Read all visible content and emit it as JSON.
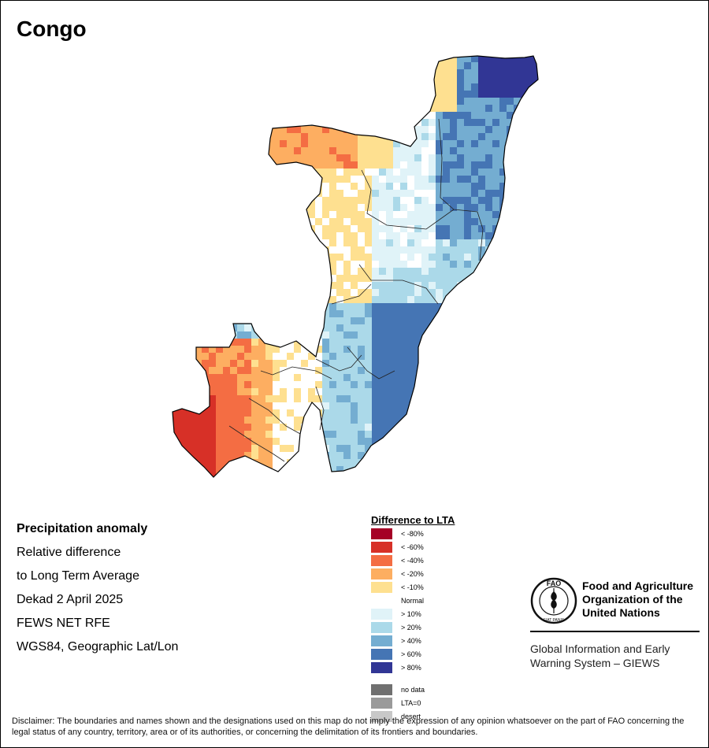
{
  "map": {
    "title": "Congo",
    "info": {
      "line1": "Precipitation anomaly",
      "line2": "Relative difference",
      "line3": "to Long Term Average",
      "line4": "Dekad 2 April 2025",
      "line5": "FEWS NET RFE",
      "line6": "WGS84, Geographic Lat/Lon"
    }
  },
  "legend": {
    "title": "Difference to LTA",
    "items": [
      {
        "label": "< -80%",
        "color": "#a50026"
      },
      {
        "label": "< -60%",
        "color": "#d73027"
      },
      {
        "label": "< -40%",
        "color": "#f46d43"
      },
      {
        "label": "< -20%",
        "color": "#fdae61"
      },
      {
        "label": "< -10%",
        "color": "#fee090"
      },
      {
        "label": "Normal",
        "color": "#ffffff"
      },
      {
        "label": "> 10%",
        "color": "#e0f3f8"
      },
      {
        "label": "> 20%",
        "color": "#abd9e9"
      },
      {
        "label": "> 40%",
        "color": "#74add1"
      },
      {
        "label": "> 60%",
        "color": "#4575b4"
      },
      {
        "label": "> 80%",
        "color": "#313695"
      }
    ],
    "extra": [
      {
        "label": "no data",
        "color": "#707070"
      },
      {
        "label": "LTA=0",
        "color": "#9a9a9a"
      },
      {
        "label": "desert",
        "color": "#c8c8c8"
      }
    ]
  },
  "logo": {
    "org_line1": "Food and Agriculture",
    "org_line2": "Organization of the",
    "org_line3": "United Nations",
    "sub_line1": "Global Information and Early",
    "sub_line2": "Warning System – GIEWS",
    "emblem_top": "FAO",
    "emblem_motto": "FIAT PANIS"
  },
  "disclaimer": "Disclaimer: The boundaries and names shown and the designations used on this map do not imply the expression of any opinion whatsoever on the part of FAO concerning the legal status of any country, territory, area or of its authorities, or concerning the delimitation of its frontiers and boundaries."
}
